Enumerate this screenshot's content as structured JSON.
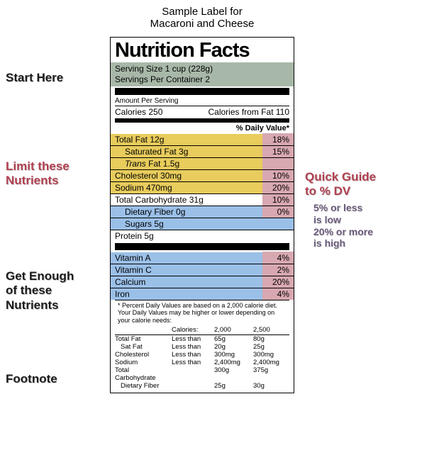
{
  "title_line1": "Sample Label for",
  "title_line2": "Macaroni and Cheese",
  "label": {
    "heading": "Nutrition Facts",
    "serving_size": "Serving Size 1 cup (228g)",
    "servings_per": "Servings Per Container 2",
    "amount_per_serving": "Amount Per Serving",
    "calories_label": "Calories 250",
    "calories_fat": "Calories from Fat 110",
    "dv_header": "% Daily Value*",
    "rows": [
      {
        "left": "Total Fat 12g",
        "dv": "18%",
        "bg": "yellow",
        "sep": false,
        "indent": 0
      },
      {
        "left": "Saturated Fat 3g",
        "dv": "15%",
        "bg": "yellow",
        "sep": true,
        "indent": 1
      },
      {
        "left": "Trans Fat 1.5g",
        "dv": "",
        "bg": "yellow",
        "sep": true,
        "indent": 1,
        "italic_first": true
      },
      {
        "left": "Cholesterol 30mg",
        "dv": "10%",
        "bg": "yellow",
        "sep": true,
        "indent": 0
      },
      {
        "left": "Sodium 470mg",
        "dv": "20%",
        "bg": "yellow",
        "sep": true,
        "indent": 0
      },
      {
        "left": "Total Carbohydrate 31g",
        "dv": "10%",
        "bg": "white",
        "sep": true,
        "indent": 0
      },
      {
        "left": "Dietary Fiber 0g",
        "dv": "0%",
        "bg": "blue",
        "sep": true,
        "indent": 1
      },
      {
        "left": "Sugars 5g",
        "dv": "",
        "bg": "blue",
        "sep": true,
        "indent": 1,
        "nopink": true
      },
      {
        "left": "Protein 5g",
        "dv": "",
        "bg": "white",
        "sep": true,
        "indent": 0,
        "nopink": true
      }
    ],
    "vitamins": [
      {
        "left": "Vitamin A",
        "dv": "4%"
      },
      {
        "left": "Vitamin C",
        "dv": "2%"
      },
      {
        "left": "Calcium",
        "dv": "20%"
      },
      {
        "left": "Iron",
        "dv": "4%"
      }
    ],
    "footnote": "* Percent Daily Values are based on a 2,000 calorie diet. Your Daily Values may be higher or lower depending on your calorie needs:",
    "foot_head": [
      "",
      "Calories:",
      "2,000",
      "2,500"
    ],
    "foot_rows": [
      [
        "Total Fat",
        "Less than",
        "65g",
        "80g"
      ],
      [
        "  Sat Fat",
        "Less than",
        "20g",
        "25g"
      ],
      [
        "Cholesterol",
        "Less than",
        "300mg",
        "300mg"
      ],
      [
        "Sodium",
        "Less than",
        "2,400mg",
        "2,400mg"
      ],
      [
        "Total Carbohydrate",
        "",
        "300g",
        "375g"
      ],
      [
        "  Dietary Fiber",
        "",
        "25g",
        "30g"
      ]
    ]
  },
  "annotations": {
    "start": "Start Here",
    "limit1": "Limit these",
    "limit2": "Nutrients",
    "enough1": "Get Enough",
    "enough2": "of these",
    "enough3": "Nutrients",
    "footnote": "Footnote",
    "quick1": "Quick Guide",
    "quick2": "to % DV",
    "quick3": "5% or less",
    "quick4": "is low",
    "quick5": "20% or more",
    "quick6": "is high"
  },
  "colors": {
    "yellow": "#e8cc5c",
    "blue": "#9bc0e8",
    "pink": "#d8a8b0",
    "serving_bg": "#a8b8a8",
    "ann_red": "#b04050"
  }
}
